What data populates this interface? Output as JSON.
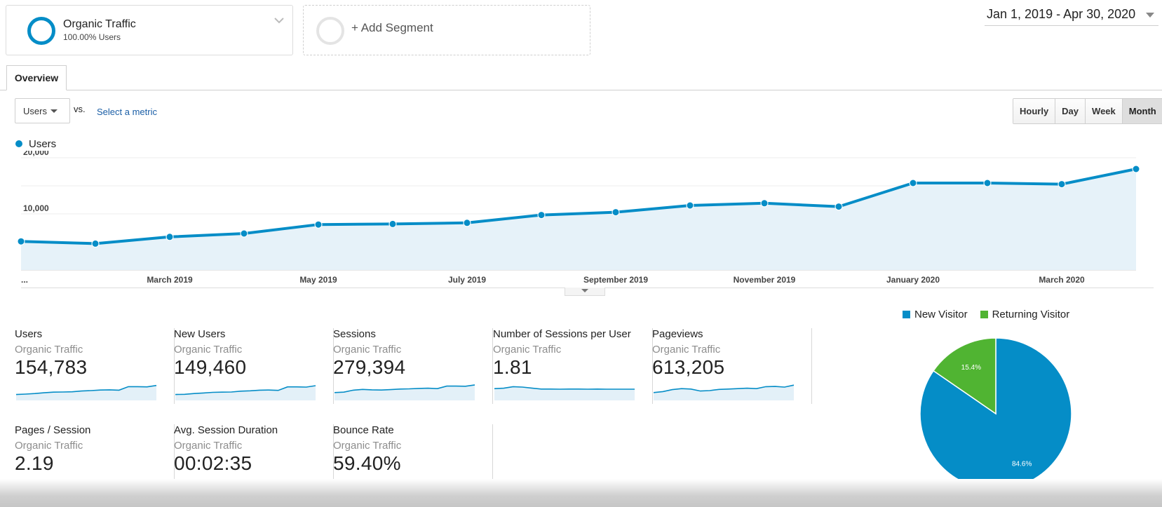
{
  "segment": {
    "name": "Organic Traffic",
    "subtitle": "100.00% Users",
    "color": "#058dc7"
  },
  "add_segment": {
    "label": "+ Add Segment"
  },
  "date_range": "Jan 1, 2019 - Apr 30, 2020",
  "tabs": [
    {
      "label": "Overview",
      "active": true
    }
  ],
  "metric_controls": {
    "primary": "Users",
    "vs_label": "vs.",
    "select_metric": "Select a metric"
  },
  "granularity": [
    {
      "label": "Hourly"
    },
    {
      "label": "Day"
    },
    {
      "label": "Week"
    },
    {
      "label": "Month",
      "active": true
    }
  ],
  "chart_data": {
    "type": "area",
    "series": [
      {
        "name": "Users",
        "color": "#058dc7",
        "values": [
          5100,
          4700,
          5900,
          6500,
          8100,
          8200,
          8400,
          9800,
          10300,
          11500,
          11900,
          11300,
          15500,
          15500,
          15300,
          18000
        ]
      }
    ],
    "x": [
      "Jan 2019",
      "Feb 2019",
      "Mar 2019",
      "Apr 2019",
      "May 2019",
      "Jun 2019",
      "Jul 2019",
      "Aug 2019",
      "Sep 2019",
      "Oct 2019",
      "Nov 2019",
      "Dec 2019",
      "Jan 2020",
      "Feb 2020",
      "Mar 2020",
      "Apr 2020"
    ],
    "x_tick_labels": [
      {
        "index": 0,
        "label": "..."
      },
      {
        "index": 2,
        "label": "March 2019"
      },
      {
        "index": 4,
        "label": "May 2019"
      },
      {
        "index": 6,
        "label": "July 2019"
      },
      {
        "index": 8,
        "label": "September 2019"
      },
      {
        "index": 10,
        "label": "November 2019"
      },
      {
        "index": 12,
        "label": "January 2020"
      },
      {
        "index": 14,
        "label": "March 2020"
      }
    ],
    "y_ticks": [
      "20,000",
      "10,000"
    ],
    "ylim": [
      0,
      20000
    ],
    "grid": true,
    "legend": "top-left"
  },
  "scorecards": [
    {
      "name": "Users",
      "segment": "Organic Traffic",
      "value": "154,783",
      "spark": [
        3,
        3.2,
        3.5,
        3.9,
        4.2,
        4.3,
        4.4,
        4.8,
        5,
        5.3,
        5.4,
        5.2,
        7,
        7,
        6.9,
        7.6
      ]
    },
    {
      "name": "New Users",
      "segment": "Organic Traffic",
      "value": "149,460",
      "spark": [
        3,
        3.1,
        3.5,
        3.8,
        4.1,
        4.2,
        4.3,
        4.7,
        4.9,
        5.2,
        5.3,
        5.1,
        6.9,
        6.9,
        6.8,
        7.5
      ]
    },
    {
      "name": "Sessions",
      "segment": "Organic Traffic",
      "value": "279,394",
      "spark": [
        4,
        4.2,
        5.2,
        5.6,
        5.4,
        5.3,
        5.5,
        5.8,
        5.9,
        6.1,
        6.2,
        6,
        7.3,
        7.3,
        7.2,
        7.9
      ]
    },
    {
      "name": "Number of Sessions per User",
      "segment": "Organic Traffic",
      "value": "1.81",
      "spark": [
        6,
        6.2,
        7,
        6.8,
        6.3,
        5.8,
        5.8,
        5.7,
        5.8,
        5.8,
        5.7,
        5.8,
        5.7,
        5.7,
        5.7,
        5.7
      ]
    },
    {
      "name": "Pageviews",
      "segment": "Organic Traffic",
      "value": "613,205",
      "spark": [
        4,
        4.5,
        5.5,
        6,
        5.8,
        4.8,
        5,
        5.6,
        5.8,
        6,
        6.2,
        6,
        7,
        7.1,
        6.8,
        7.8
      ]
    },
    {
      "name": "Pages / Session",
      "segment": "Organic Traffic",
      "value": "2.19",
      "spark": [
        6,
        6.4,
        6,
        6.2,
        5.6,
        5.4,
        5.3,
        5.4,
        5.3,
        5.4,
        5.5,
        5.4,
        5.4,
        5.3,
        5,
        5.1
      ]
    },
    {
      "name": "Avg. Session Duration",
      "segment": "Organic Traffic",
      "value": "00:02:35",
      "spark": [
        5,
        6.8,
        6.4,
        7.2,
        5.6,
        4.6,
        4.6,
        4.7,
        4.6,
        4.8,
        4.9,
        4.8,
        4.7,
        4.7,
        4.5,
        4.4
      ]
    },
    {
      "name": "Bounce Rate",
      "segment": "Organic Traffic",
      "value": "59.40%",
      "spark": [
        5,
        5.2,
        5.9,
        5.9,
        6.1,
        6.2,
        6.3,
        6.2,
        6.2,
        6.1,
        6.1,
        6.1,
        6.2,
        6.2,
        6.5,
        6.6
      ]
    }
  ],
  "pie": {
    "legend": [
      {
        "label": "New Visitor",
        "color": "#058dc7"
      },
      {
        "label": "Returning Visitor",
        "color": "#50b432"
      }
    ],
    "slices": [
      {
        "label": "New Visitor",
        "value": 84.6,
        "text": "84.6%",
        "color": "#058dc7"
      },
      {
        "label": "Returning Visitor",
        "value": 15.4,
        "text": "15.4%",
        "color": "#50b432"
      }
    ]
  }
}
